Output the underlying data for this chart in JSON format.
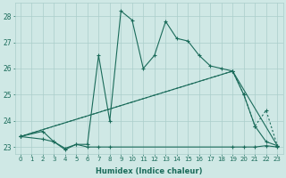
{
  "xlabel": "Humidex (Indice chaleur)",
  "xlim": [
    -0.5,
    23.5
  ],
  "ylim": [
    22.75,
    28.5
  ],
  "yticks": [
    23,
    24,
    25,
    26,
    27,
    28
  ],
  "xticks": [
    0,
    1,
    2,
    3,
    4,
    5,
    6,
    7,
    8,
    9,
    10,
    11,
    12,
    13,
    14,
    15,
    16,
    17,
    18,
    19,
    20,
    21,
    22,
    23
  ],
  "bg_color": "#cfe8e5",
  "grid_color": "#aaceca",
  "line_color": "#1a6b5a",
  "series": [
    {
      "x": [
        0,
        2,
        3,
        4,
        5,
        6,
        7,
        8,
        9,
        10,
        11,
        12,
        13,
        14,
        15,
        16,
        17,
        18,
        19,
        20,
        21,
        22,
        23
      ],
      "y": [
        23.4,
        23.6,
        23.2,
        22.9,
        23.1,
        23.1,
        26.5,
        24.0,
        28.2,
        27.85,
        26.0,
        26.5,
        27.8,
        27.15,
        27.05,
        26.5,
        26.1,
        26.0,
        25.9,
        25.0,
        23.8,
        23.2,
        23.05
      ],
      "linestyle": "-",
      "marker": "+"
    },
    {
      "x": [
        0,
        2,
        3,
        4,
        5,
        6,
        7,
        8,
        19,
        20,
        21,
        22,
        23
      ],
      "y": [
        23.4,
        23.3,
        23.2,
        22.95,
        23.1,
        23.0,
        23.0,
        23.0,
        23.0,
        23.0,
        23.0,
        23.05,
        23.0
      ],
      "linestyle": "-",
      "marker": "+"
    },
    {
      "x": [
        0,
        19,
        20,
        21,
        22,
        23
      ],
      "y": [
        23.4,
        25.9,
        25.0,
        23.8,
        24.4,
        23.05
      ],
      "linestyle": "dotted",
      "marker": "+"
    },
    {
      "x": [
        0,
        19,
        23
      ],
      "y": [
        23.4,
        25.9,
        23.05
      ],
      "linestyle": "-",
      "marker": "+"
    }
  ]
}
